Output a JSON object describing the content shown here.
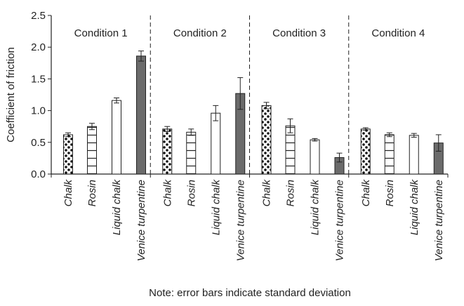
{
  "chart_data": {
    "type": "bar",
    "ylabel": "Coefficient of friction",
    "ylim": [
      0,
      2.5
    ],
    "yticks": [
      "0.0",
      "0.5",
      "1.0",
      "1.5",
      "2.0",
      "2.5"
    ],
    "yticks_values": [
      0,
      0.5,
      1.0,
      1.5,
      2.0,
      2.5
    ],
    "note": "Note: error bars indicate standard deviation",
    "grid": false,
    "categories": [
      "Chalk",
      "Rosin",
      "Liquid chalk",
      "Venice turpentine"
    ],
    "category_styles": [
      "dots",
      "hlines",
      "white",
      "gray"
    ],
    "colors": {
      "gray_fill": "#6b6b6b",
      "outline": "#222222"
    },
    "groups": [
      {
        "name": "Condition 1",
        "values": [
          0.62,
          0.75,
          1.16,
          1.86
        ],
        "errors": [
          0.03,
          0.05,
          0.04,
          0.08
        ]
      },
      {
        "name": "Condition 2",
        "values": [
          0.71,
          0.66,
          0.96,
          1.27
        ],
        "errors": [
          0.04,
          0.05,
          0.12,
          0.25
        ]
      },
      {
        "name": "Condition 3",
        "values": [
          1.08,
          0.76,
          0.54,
          0.26
        ],
        "errors": [
          0.05,
          0.11,
          0.02,
          0.07
        ]
      },
      {
        "name": "Condition 4",
        "values": [
          0.71,
          0.62,
          0.61,
          0.49
        ],
        "errors": [
          0.02,
          0.03,
          0.03,
          0.13
        ]
      }
    ]
  }
}
